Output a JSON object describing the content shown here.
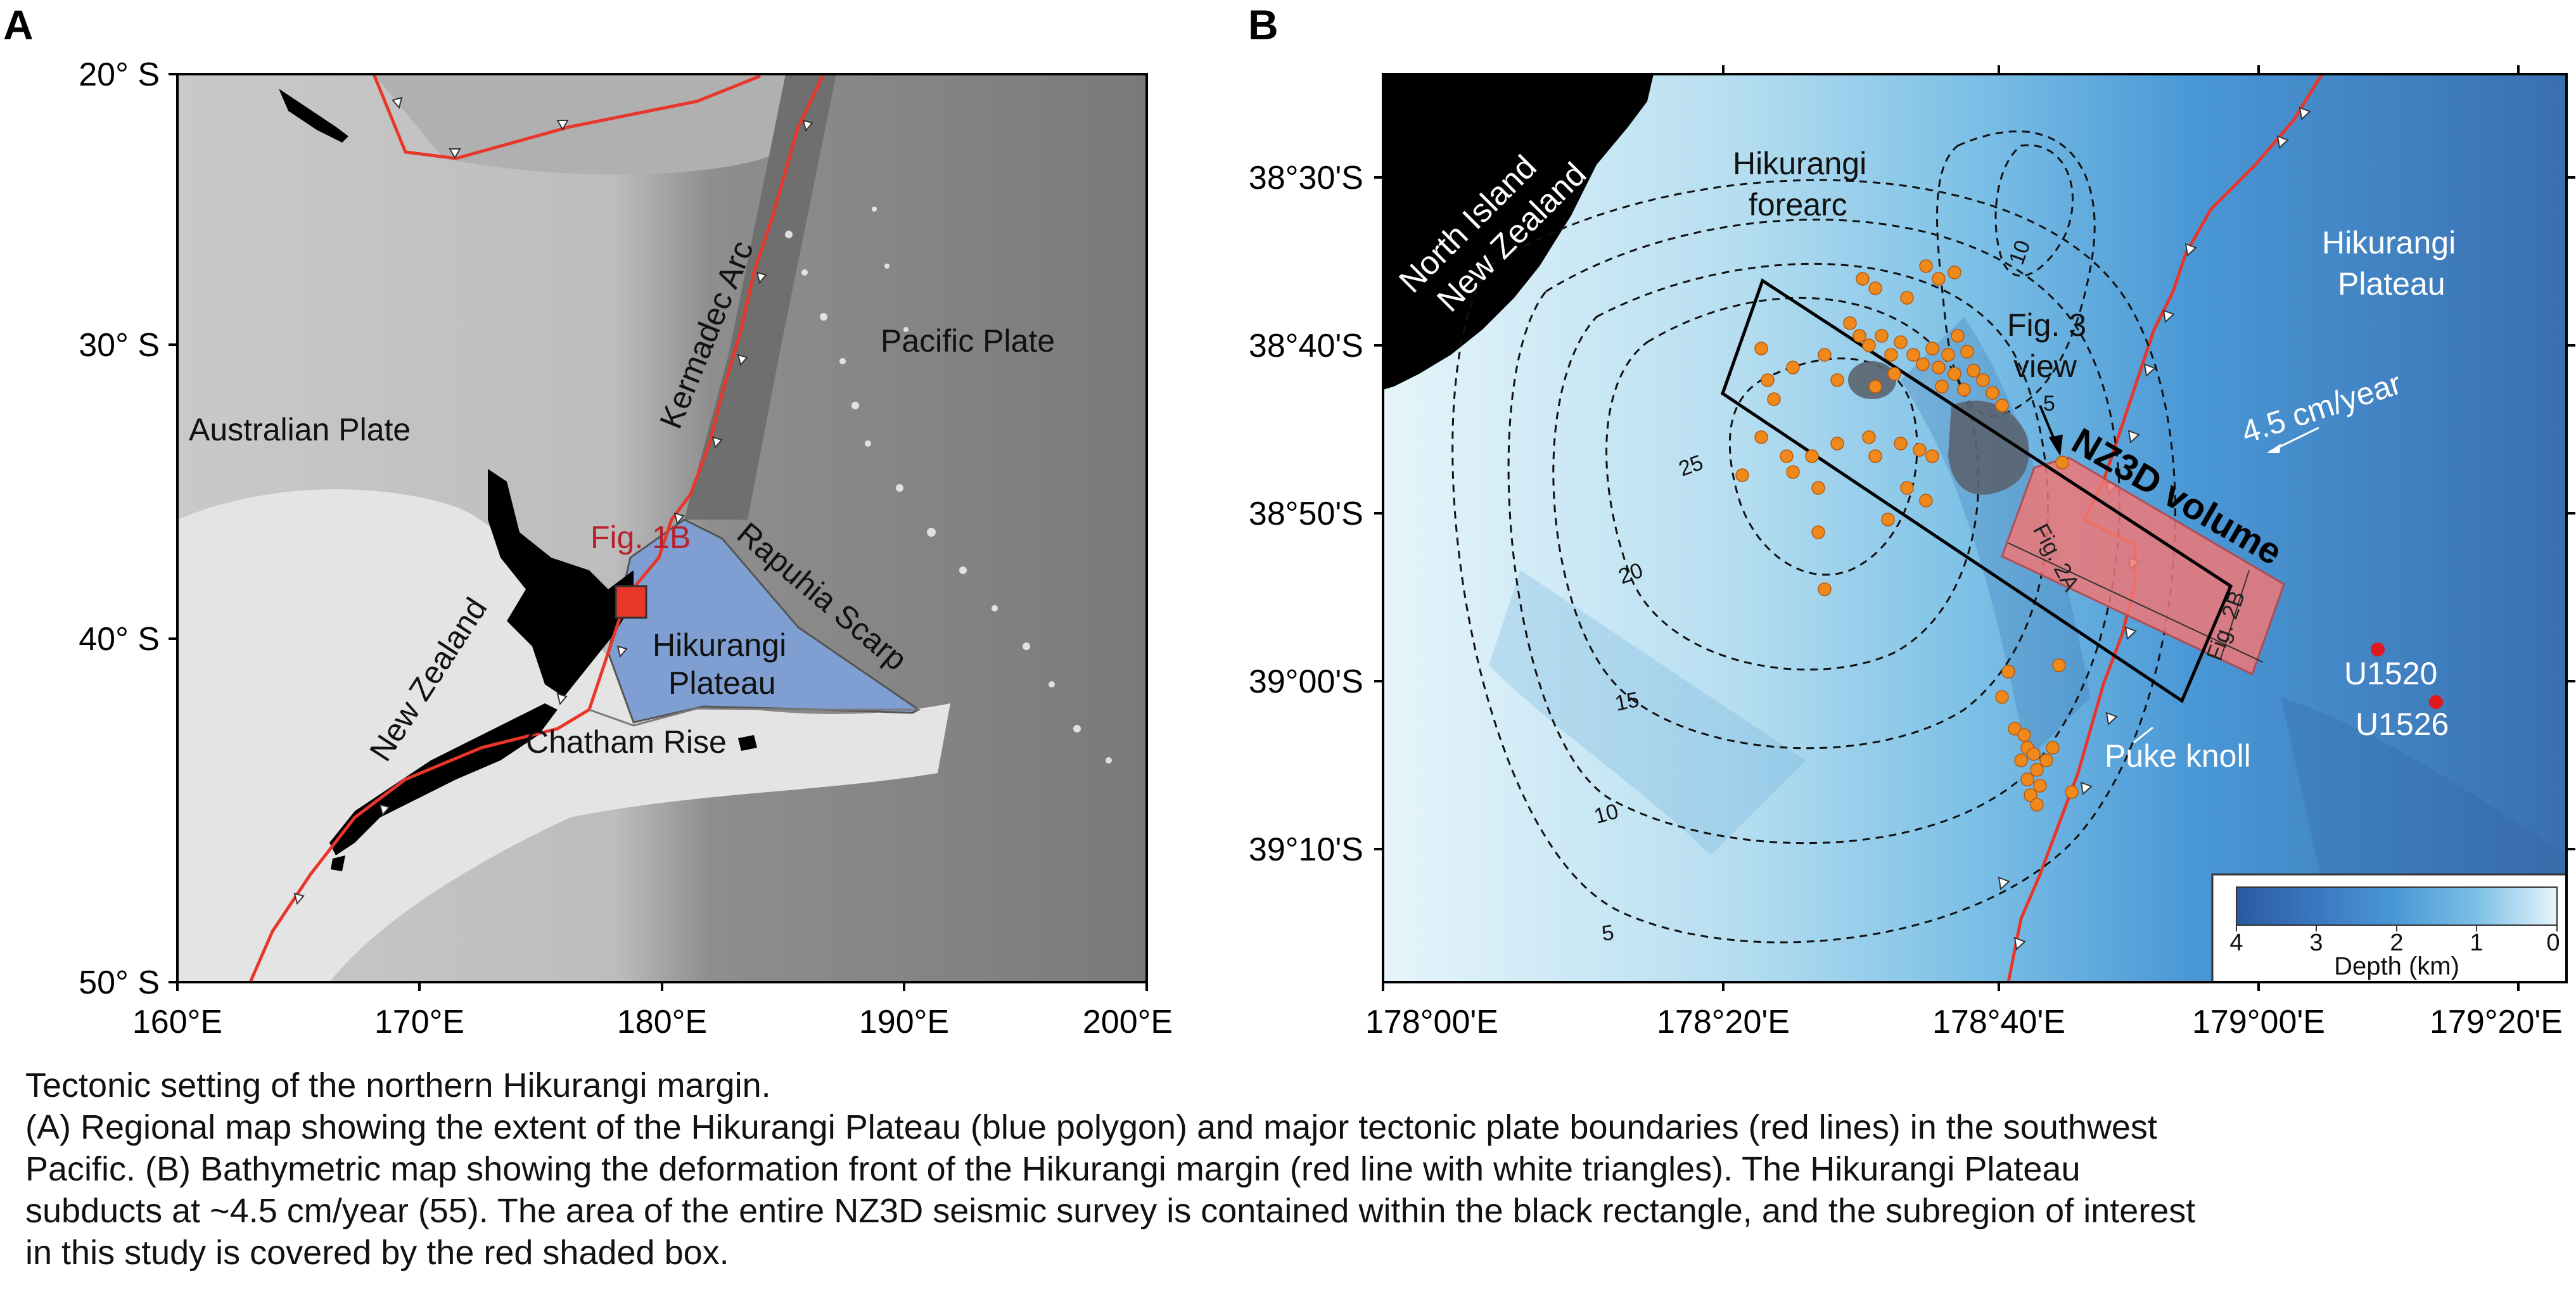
{
  "panel_a": {
    "panel_label": "A",
    "y_ticks": [
      "20° S",
      "30° S",
      "40° S",
      "50° S"
    ],
    "x_ticks": [
      "160°E",
      "170°E",
      "180°E",
      "190°E",
      "200°E"
    ],
    "labels": {
      "australian_plate": "Australian Plate",
      "pacific_plate": "Pacific Plate",
      "kermadec_arc": "Kermadec Arc",
      "rapuhia_scarp": "Rapuhia Scarp",
      "new_zealand": "New Zealand",
      "fig_1b": "Fig. 1B",
      "plateau_line1": "Hikurangi",
      "plateau_line2": "Plateau",
      "chatham_rise": "Chatham Rise"
    },
    "colors": {
      "plate_boundary": "#e8372a",
      "plateau": "#7f9fd2",
      "land": "#000000",
      "fig1b_box": "#e8372a"
    }
  },
  "panel_b": {
    "panel_label": "B",
    "y_ticks": [
      "38°30'S",
      "38°40'S",
      "38°50'S",
      "39°00'S",
      "39°10'S"
    ],
    "x_ticks": [
      "178°00'E",
      "178°20'E",
      "178°40'E",
      "179°00'E",
      "179°20'E"
    ],
    "labels": {
      "north_island_line1": "North Island",
      "north_island_line2": "New Zealand",
      "forearc_line1": "Hikurangi",
      "forearc_line2": "forearc",
      "plateau_line1": "Hikurangi",
      "plateau_line2": "Plateau",
      "fig3_line1": "Fig. 3",
      "fig3_line2": "view",
      "nz3d_volume": "NZ3D volume",
      "fig_2a": "Fig. 2A",
      "fig_2b": "Fig. 2B",
      "rate": "4.5 cm/year",
      "u1520": "U1520",
      "u1526": "U1526",
      "puke_knoll": "Puke knoll"
    },
    "contour_labels": [
      "10",
      "5",
      "25",
      "20",
      "15",
      "10",
      "5"
    ],
    "colorbar": {
      "title": "Depth (km)",
      "ticks": [
        "4",
        "3",
        "2",
        "1",
        "0"
      ],
      "colors": [
        "#2a5aa0",
        "#3a78c0",
        "#4a98d6",
        "#7cc0e6",
        "#b6def0",
        "#e6f5fb"
      ]
    },
    "colors": {
      "deformation_front": "#e8372a",
      "seismicity": "#f0891c",
      "sites": "#e0191f",
      "subregion": "#f07878"
    }
  },
  "caption": [
    "Tectonic setting of the northern Hikurangi margin.",
    "(A) Regional map showing the extent of the Hikurangi Plateau (blue polygon) and major tectonic plate boundaries (red lines) in the southwest",
    "Pacific. (B) Bathymetric map showing the deformation front of the Hikurangi margin (red line with white triangles). The Hikurangi Plateau",
    "subducts at ~4.5 cm/year (55). The area of the entire NZ3D seismic survey is contained within the black rectangle, and the subregion of interest",
    "in this study is covered by the red shaded box."
  ]
}
